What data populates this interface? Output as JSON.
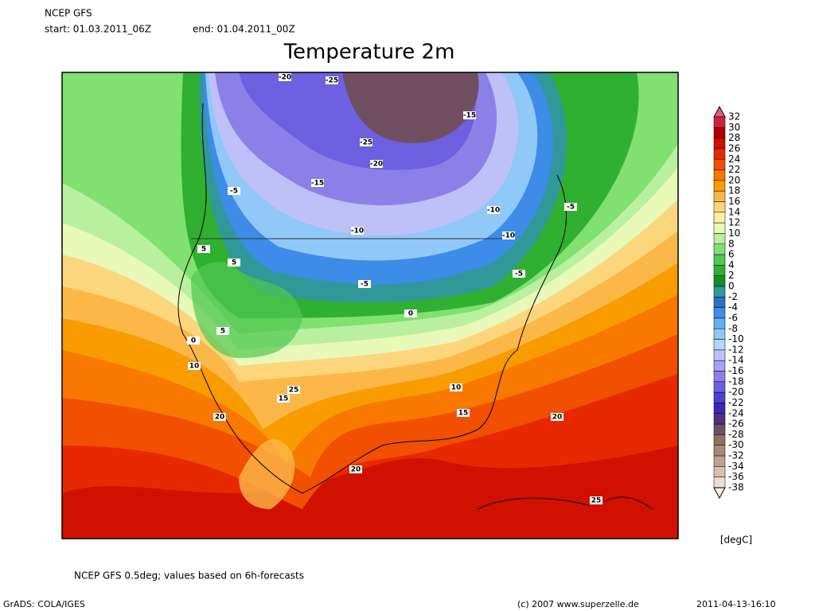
{
  "header": {
    "model": "NCEP GFS",
    "start": "start: 01.03.2011_06Z",
    "end": "end: 01.04.2011_00Z",
    "title": "Temperature 2m"
  },
  "colorbar": {
    "unit": "[degC]",
    "levels": [
      32,
      30,
      28,
      26,
      24,
      22,
      20,
      18,
      16,
      14,
      12,
      10,
      8,
      6,
      4,
      2,
      0,
      -2,
      -4,
      -6,
      -8,
      -10,
      -12,
      -14,
      -16,
      -18,
      -20,
      -22,
      -24,
      -26,
      -28,
      -30,
      -32,
      -34,
      -36,
      -38
    ],
    "colors": [
      "#e0607a",
      "#d02040",
      "#b00000",
      "#d01000",
      "#e82800",
      "#f05000",
      "#f87800",
      "#f89c00",
      "#fbb848",
      "#fcd67c",
      "#fcf0a0",
      "#e8f8b8",
      "#b8f0a0",
      "#80e070",
      "#50c850",
      "#30b030",
      "#109020",
      "#309898",
      "#2870d0",
      "#3c8ce8",
      "#64aef0",
      "#90c8f8",
      "#b0d8fc",
      "#c0c0f8",
      "#a8a0f0",
      "#8c80e8",
      "#6e60e0",
      "#5040d0",
      "#3c28b8",
      "#503080",
      "#705060",
      "#907060",
      "#a88878",
      "#c0a090",
      "#d8c0b0",
      "#ecdcd4",
      "#f8eae8"
    ]
  },
  "map": {
    "contour_labels": [
      "-20",
      "-25",
      "-25",
      "-15",
      "-10",
      "-20",
      "-15",
      "-5",
      "-10",
      "-10",
      "-5",
      "-5",
      "-5",
      "0",
      "5",
      "5",
      "0",
      "5",
      "10",
      "15",
      "10",
      "15",
      "20",
      "20",
      "20",
      "25",
      "25"
    ]
  },
  "footer": {
    "note": "NCEP GFS 0.5deg; values based on 6h-forecasts",
    "software": "GrADS: COLA/IGES",
    "copyright": "(c) 2007 www.superzelle.de",
    "timestamp": "2011-04-13-16:10"
  }
}
